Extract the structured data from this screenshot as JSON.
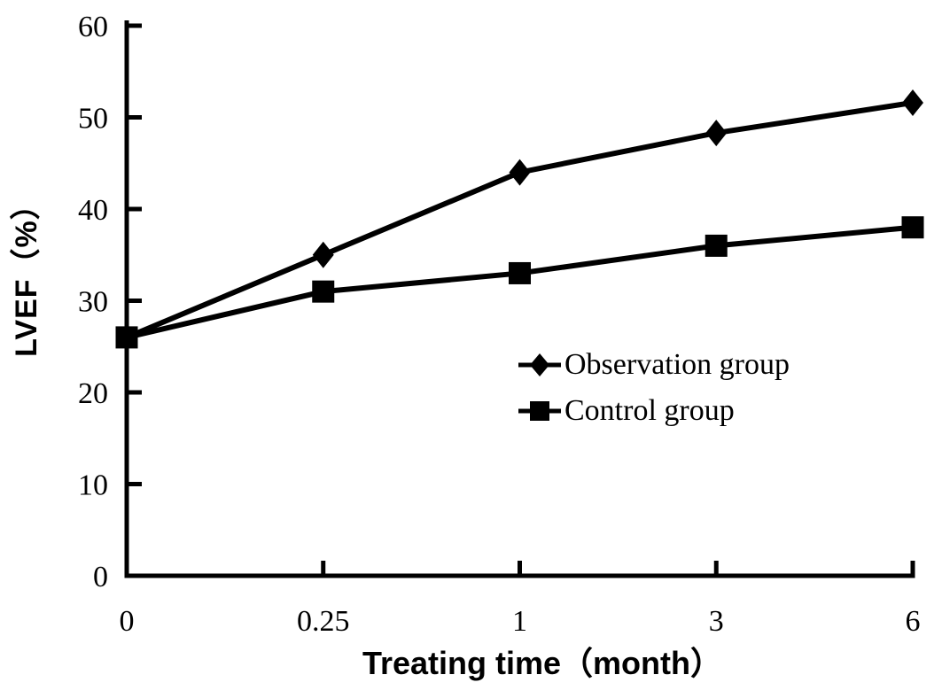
{
  "figure": {
    "background": "#ffffff",
    "ink_color": "#000000"
  },
  "chart_data": {
    "type": "line",
    "title": "",
    "xlabel": "Treating time（month）",
    "ylabel": "LVEF（%）",
    "categories": [
      "0",
      "0.25",
      "1",
      "3",
      "6"
    ],
    "series": [
      {
        "name": "Observation group",
        "marker": "diamond",
        "values": [
          26,
          35,
          44,
          48.3,
          51.6
        ]
      },
      {
        "name": "Control group",
        "marker": "square",
        "values": [
          26,
          31,
          33,
          36,
          38
        ]
      }
    ],
    "y_ticks": [
      0,
      10,
      20,
      30,
      40,
      50,
      60
    ],
    "ylim": [
      0,
      60
    ],
    "grid": false,
    "legend_position": "inside-center-right",
    "line_color": "#000000",
    "background": "#ffffff"
  }
}
